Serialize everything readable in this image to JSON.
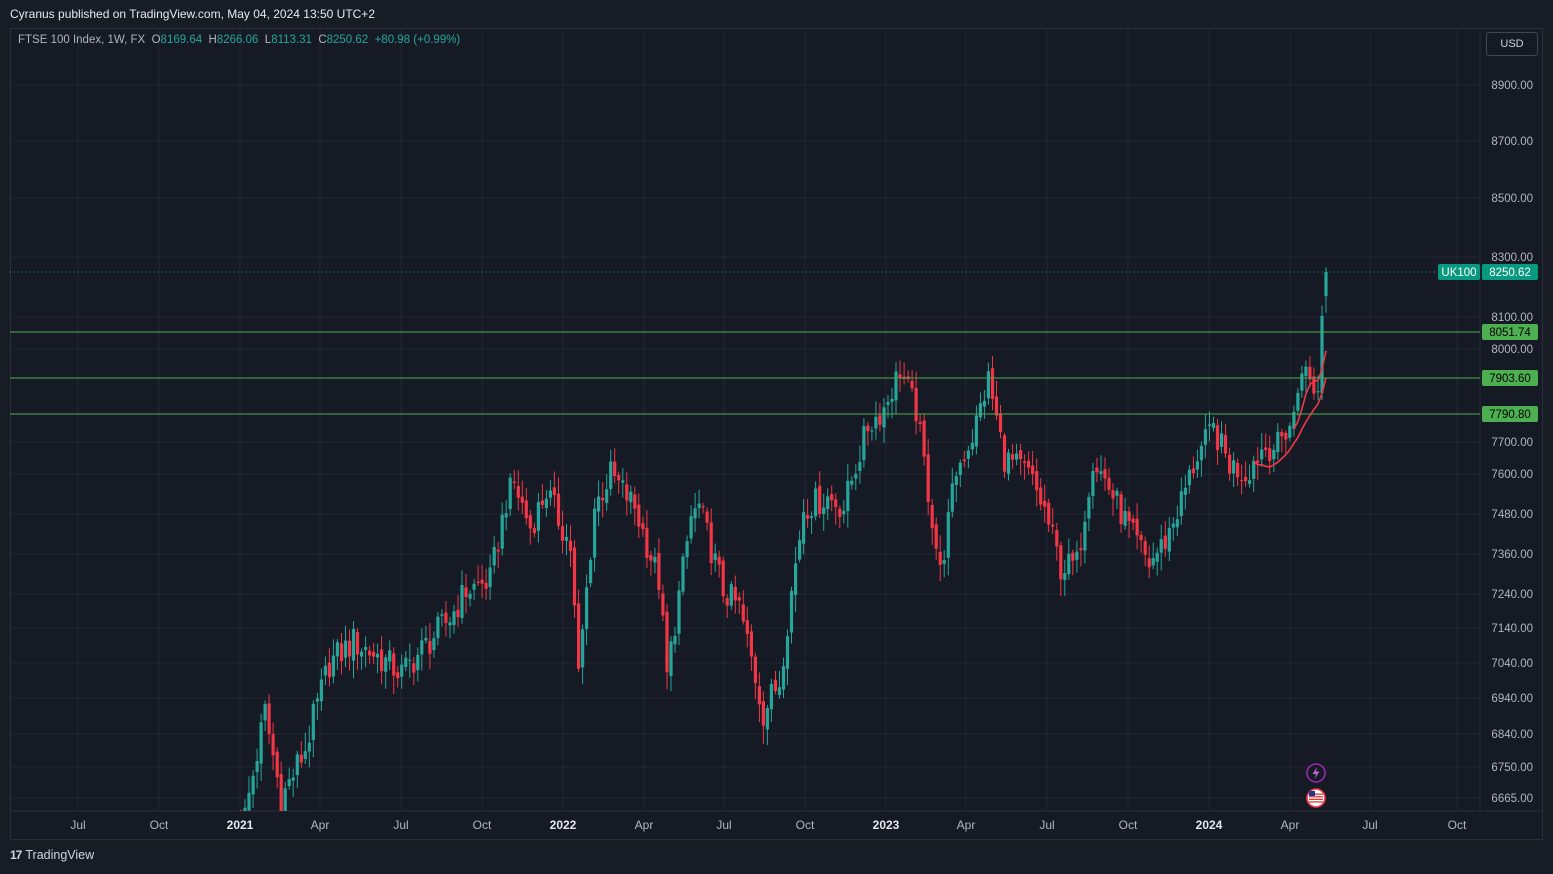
{
  "publisher_line": "Cyranus published on TradingView.com, May 04, 2024 13:50 UTC+2",
  "legend": {
    "symbol": "FTSE 100 Index, 1W, FX",
    "o_label": "O",
    "o_value": "8169.64",
    "h_label": "H",
    "h_value": "8266.06",
    "l_label": "L",
    "l_value": "8113.31",
    "c_label": "C",
    "c_value": "8250.62",
    "change": "+80.98 (+0.99%)"
  },
  "currency": "USD",
  "footer_brand": "TradingView",
  "footer_mark": "17",
  "colors": {
    "up": "#26a69a",
    "down": "#f23645",
    "level": "#4caf50",
    "ma": "#f23645",
    "label_up": "#089981",
    "label_level": "#4caf50"
  },
  "chart_data": {
    "type": "candlestick",
    "timeframe": "1W",
    "y_ticks": [
      "8900.00",
      "8700.00",
      "8500.00",
      "8300.00",
      "8100.00",
      "8000.00",
      "7700.00",
      "7600.00",
      "7480.00",
      "7360.00",
      "7240.00",
      "7140.00",
      "7040.00",
      "6940.00",
      "6840.00",
      "6750.00",
      "6665.00"
    ],
    "x_ticks": [
      "Jul",
      "Oct",
      "2021",
      "Apr",
      "Jul",
      "Oct",
      "2022",
      "Apr",
      "Jul",
      "Oct",
      "2023",
      "Apr",
      "Jul",
      "Oct",
      "2024",
      "Apr",
      "Jul",
      "Oct"
    ],
    "bold_x_ticks": [
      "2021",
      "2022",
      "2023",
      "2024"
    ],
    "last_price": {
      "symbol": "UK100",
      "value": "8250.62"
    },
    "horizontal_levels": [
      "8051.74",
      "7903.60",
      "7790.80"
    ],
    "notes": "Weekly FTSE 100 candles from late 2020 to May 2024, rising from about 6600 to 8250."
  }
}
